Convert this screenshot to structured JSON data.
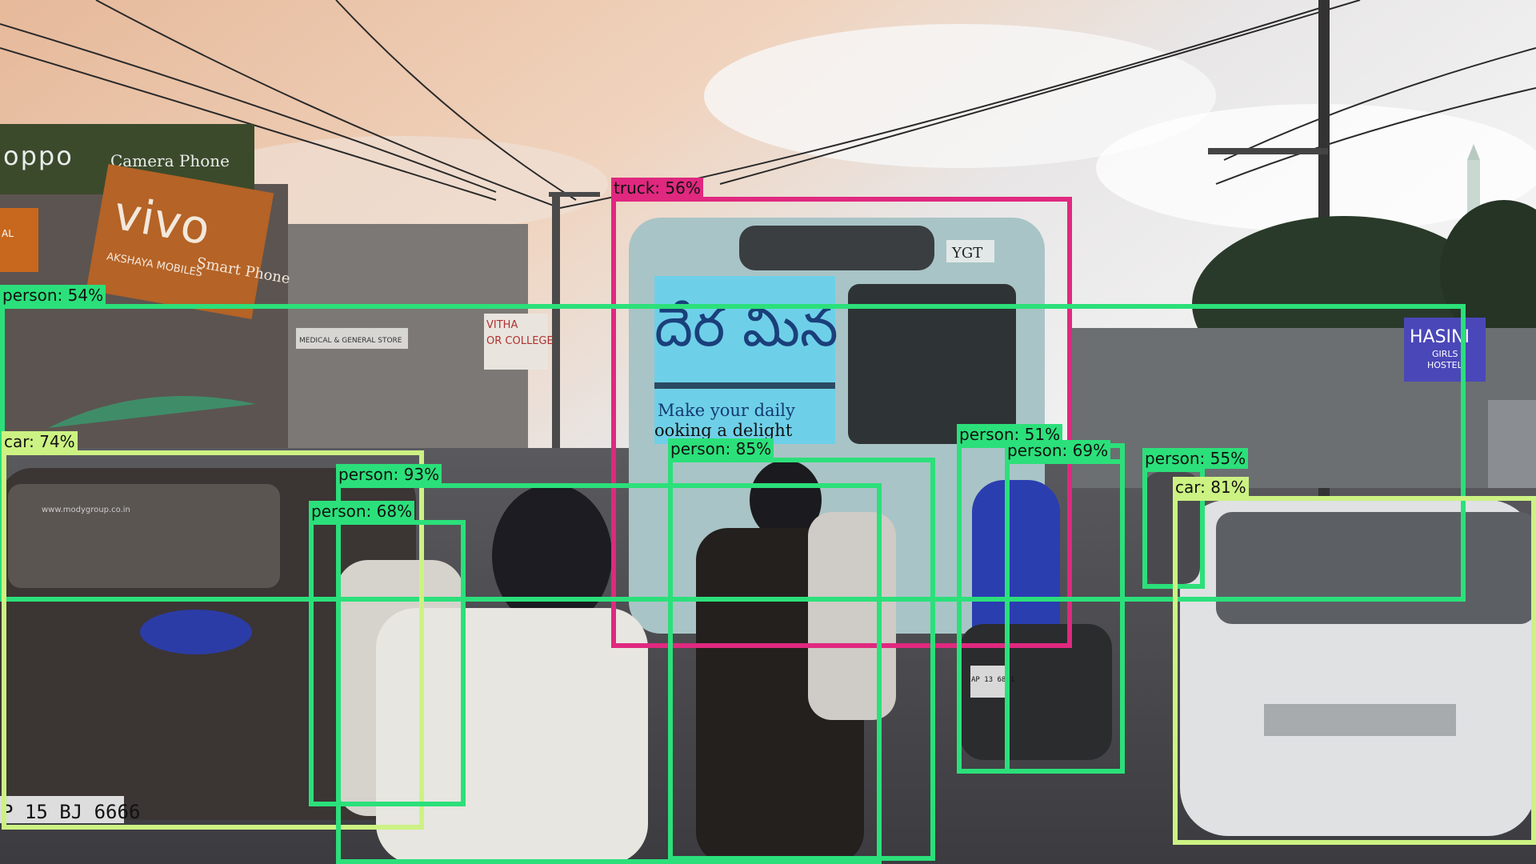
{
  "signs": {
    "oppo_brand": "oppo",
    "oppo_tagline": "Camera  Phone",
    "vivo_brand": "vivo",
    "vivo_tagline": "Smart Phone",
    "vivo_store": "AKSHAYA MOBILES",
    "left_edge": "AL",
    "medical_store": "MEDICAL & GENERAL STORE",
    "college_sign": "OR COLLEGE",
    "vitha": "VITHA",
    "bus_code": "YGT",
    "bus_ad_script": "దేర మిన",
    "bus_ad_line1": "Make your daily",
    "bus_ad_line2": "ooking a delight",
    "hostel_name": "HASINI",
    "hostel_sub1": "GIRLS",
    "hostel_sub2": "HOSTEL",
    "plate_left": "P 15 BJ 6666",
    "plate_bike": "AP 13 6891",
    "dealer": "www.modygroup.co.in"
  },
  "detections": [
    {
      "label": "truck: 56%",
      "class": "truck",
      "color": "#e0287f"
    },
    {
      "label": "person: 54%",
      "class": "person",
      "color": "#2be07a"
    },
    {
      "label": "car: 74%",
      "class": "car",
      "color": "#ccf283"
    },
    {
      "label": "person: 93%",
      "class": "person",
      "color": "#2be07a"
    },
    {
      "label": "person: 68%",
      "class": "person",
      "color": "#2be07a"
    },
    {
      "label": "person: 85%",
      "class": "person",
      "color": "#2be07a"
    },
    {
      "label": "person: 51%",
      "class": "person",
      "color": "#2be07a"
    },
    {
      "label": "person: 69%",
      "class": "person",
      "color": "#2be07a"
    },
    {
      "label": "person: 55%",
      "class": "person",
      "color": "#2be07a"
    },
    {
      "label": "car: 81%",
      "class": "car",
      "color": "#ccf283"
    }
  ]
}
